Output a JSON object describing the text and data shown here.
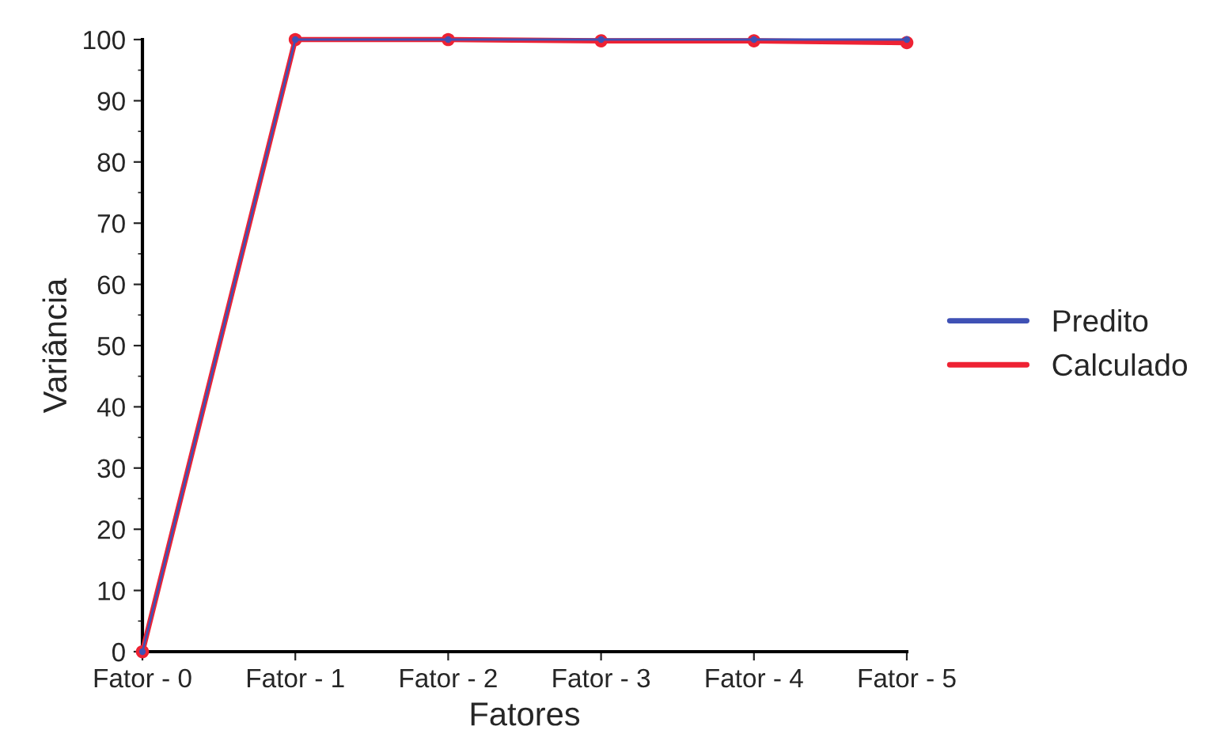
{
  "chart_data": {
    "type": "line",
    "xlabel": "Fatores",
    "ylabel": "Variância",
    "categories": [
      "Fator - 0",
      "Fator - 1",
      "Fator - 2",
      "Fator - 3",
      "Fator - 4",
      "Fator - 5"
    ],
    "series": [
      {
        "name": "Predito",
        "color": "#3f51b5",
        "values": [
          0,
          100,
          100,
          100,
          100,
          100
        ]
      },
      {
        "name": "Calculado",
        "color": "#ee2233",
        "values": [
          0,
          100,
          100,
          99.8,
          99.8,
          99.5
        ]
      }
    ],
    "ylim": [
      0,
      100
    ],
    "yticks": [
      0,
      10,
      20,
      30,
      40,
      50,
      60,
      70,
      80,
      90,
      100
    ],
    "grid": false,
    "legend": "right",
    "marker": "circle",
    "line_style": "solid"
  }
}
